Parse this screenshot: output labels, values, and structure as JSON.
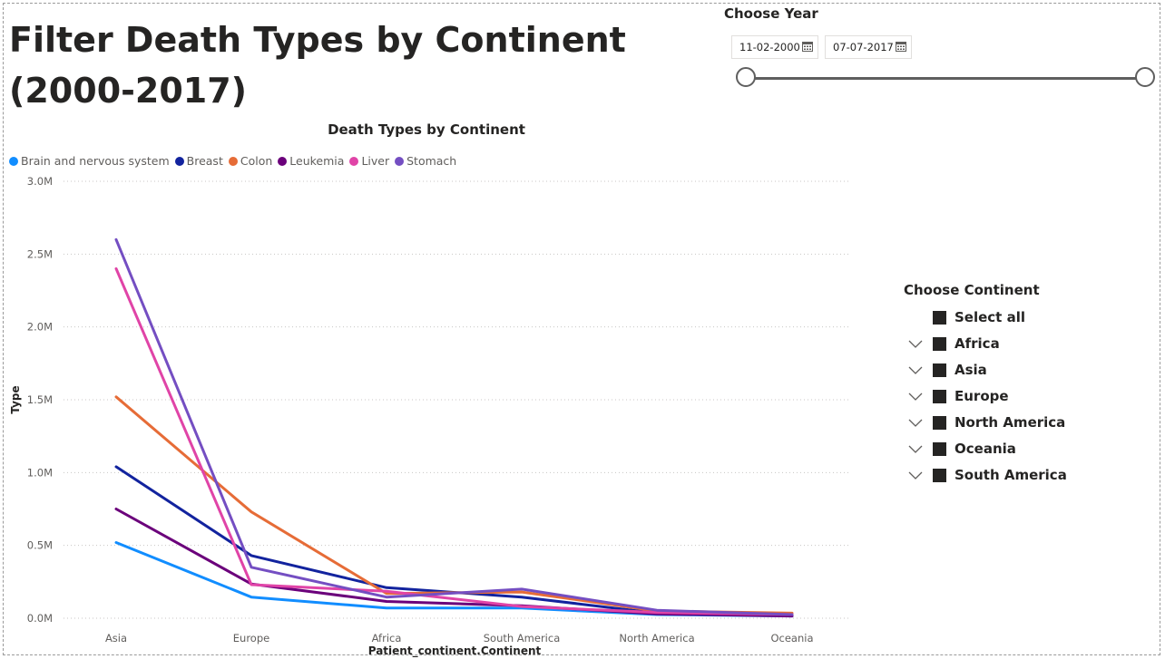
{
  "page": {
    "title": "Filter Death Types by Continent (2000-2017)"
  },
  "year_slicer": {
    "title": "Choose Year",
    "start_date": "11-02-2000",
    "end_date": "07-07-2017",
    "start_fraction": 0,
    "end_fraction": 1
  },
  "continent_slicer": {
    "title": "Choose Continent",
    "items": [
      {
        "label": "Select all",
        "expandable": false,
        "checked": true
      },
      {
        "label": "Africa",
        "expandable": true,
        "checked": true
      },
      {
        "label": "Asia",
        "expandable": true,
        "checked": true
      },
      {
        "label": "Europe",
        "expandable": true,
        "checked": true
      },
      {
        "label": "North America",
        "expandable": true,
        "checked": true
      },
      {
        "label": "Oceania",
        "expandable": true,
        "checked": true
      },
      {
        "label": "South America",
        "expandable": true,
        "checked": true
      }
    ]
  },
  "chart_data": {
    "type": "line",
    "title": "Death Types by Continent",
    "xlabel": "Patient_continent.Continent",
    "ylabel": "Type",
    "ylim": [
      0,
      3000000
    ],
    "yticks": [
      "0.0M",
      "0.5M",
      "1.0M",
      "1.5M",
      "2.0M",
      "2.5M",
      "3.0M"
    ],
    "grid": true,
    "legend_position": "top-left",
    "categories": [
      "Asia",
      "Europe",
      "Africa",
      "South America",
      "North America",
      "Oceania"
    ],
    "series": [
      {
        "name": "Brain and nervous system",
        "color": "#118DFF",
        "values": [
          520000,
          145000,
          70000,
          70000,
          25000,
          15000
        ]
      },
      {
        "name": "Breast",
        "color": "#12239E",
        "values": [
          1040000,
          430000,
          210000,
          145000,
          35000,
          20000
        ]
      },
      {
        "name": "Colon",
        "color": "#E66C37",
        "values": [
          1520000,
          730000,
          170000,
          180000,
          50000,
          35000
        ]
      },
      {
        "name": "Leukemia",
        "color": "#6B007B",
        "values": [
          750000,
          235000,
          115000,
          85000,
          30000,
          15000
        ]
      },
      {
        "name": "Liver",
        "color": "#E044A7",
        "values": [
          2400000,
          230000,
          185000,
          80000,
          40000,
          25000
        ]
      },
      {
        "name": "Stomach",
        "color": "#744EC2",
        "values": [
          2600000,
          350000,
          145000,
          200000,
          55000,
          25000
        ]
      }
    ]
  }
}
